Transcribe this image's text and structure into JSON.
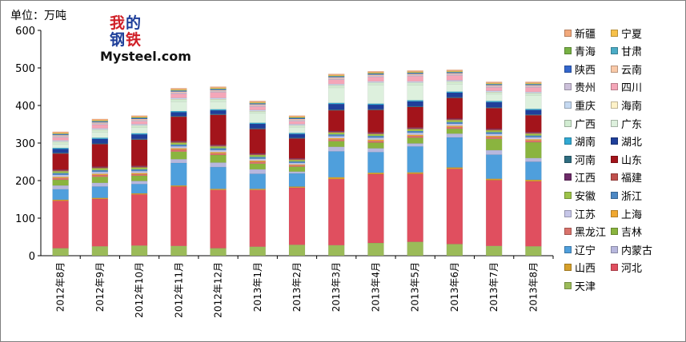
{
  "unit_label": "单位：万吨",
  "logo": {
    "cn": "我的钢铁",
    "en": "Mysteel.com"
  },
  "colors": {
    "天津": "#9bbb59",
    "河北": "#e04f5f",
    "山西": "#d6a02a",
    "内蒙古": "#b7b7dd",
    "辽宁": "#4f9fdc",
    "吉林": "#8ab43f",
    "黑龙江": "#d9726b",
    "上海": "#f0a830",
    "江苏": "#c6c6e8",
    "浙江": "#4d88c4",
    "安徽": "#9dc34a",
    "福建": "#c0504d",
    "江西": "#6d2b68",
    "山东": "#a3141b",
    "河南": "#2e6d80",
    "湖北": "#1f3f9a",
    "湖南": "#31a9d3",
    "广东": "#ddf0dd",
    "广西": "#d2ecd2",
    "海南": "#fff2c8",
    "重庆": "#c5d9f1",
    "四川": "#f4a6b8",
    "贵州": "#ccc0da",
    "云南": "#f9c9a8",
    "陕西": "#3366cc",
    "甘肃": "#4bacc6",
    "青海": "#77b144",
    "宁夏": "#f7c14a",
    "新疆": "#f2a97c"
  },
  "chart_data": {
    "type": "bar",
    "stacked": true,
    "ylim": [
      0,
      600
    ],
    "yticks": [
      0,
      100,
      200,
      300,
      400,
      500,
      600
    ],
    "categories": [
      "2012年8月",
      "2012年9月",
      "2012年10月",
      "2012年11月",
      "2012年12月",
      "2013年1月",
      "2013年2月",
      "2013年3月",
      "2013年4月",
      "2013年5月",
      "2013年6月",
      "2013年7月",
      "2013年8月"
    ],
    "legend": [
      "新疆",
      "宁夏",
      "青海",
      "甘肃",
      "陕西",
      "云南",
      "贵州",
      "四川",
      "重庆",
      "海南",
      "广西",
      "广东",
      "湖南",
      "湖北",
      "河南",
      "山东",
      "江西",
      "福建",
      "安徽",
      "浙江",
      "江苏",
      "上海",
      "黑龙江",
      "吉林",
      "辽宁",
      "内蒙古",
      "山西",
      "河北",
      "天津"
    ],
    "series": [
      {
        "name": "天津",
        "values": [
          20,
          25,
          27,
          26,
          20,
          24,
          29,
          28,
          34,
          37,
          31,
          26,
          25
        ]
      },
      {
        "name": "河北",
        "values": [
          126,
          126,
          136,
          158,
          155,
          151,
          152,
          176,
          183,
          181,
          200,
          175,
          173
        ]
      },
      {
        "name": "山西",
        "values": [
          3,
          3,
          3,
          3,
          3,
          3,
          3,
          5,
          4,
          4,
          4,
          4,
          4
        ]
      },
      {
        "name": "辽宁",
        "values": [
          28,
          30,
          25,
          60,
          58,
          40,
          35,
          69,
          55,
          69,
          80,
          64,
          48
        ]
      },
      {
        "name": "内蒙古",
        "values": [
          10,
          10,
          8,
          10,
          12,
          12,
          5,
          12,
          10,
          8,
          10,
          12,
          10
        ]
      },
      {
        "name": "吉林",
        "values": [
          15,
          16,
          14,
          20,
          20,
          15,
          13,
          15,
          15,
          15,
          13,
          30,
          42
        ]
      },
      {
        "name": "黑龙江",
        "values": [
          5,
          5,
          4,
          6,
          5,
          5,
          4,
          5,
          5,
          5,
          5,
          5,
          5
        ]
      },
      {
        "name": "上海",
        "values": [
          3,
          3,
          3,
          3,
          3,
          3,
          2,
          3,
          3,
          3,
          3,
          3,
          3
        ]
      },
      {
        "name": "江苏",
        "values": [
          5,
          5,
          5,
          5,
          5,
          5,
          4,
          5,
          5,
          5,
          5,
          5,
          5
        ]
      },
      {
        "name": "浙江",
        "values": [
          5,
          5,
          5,
          5,
          5,
          5,
          4,
          5,
          5,
          5,
          5,
          5,
          5
        ]
      },
      {
        "name": "安徽",
        "values": [
          5,
          5,
          5,
          5,
          5,
          5,
          4,
          5,
          5,
          5,
          5,
          5,
          5
        ]
      },
      {
        "name": "福建",
        "values": [
          2,
          2,
          2,
          2,
          2,
          2,
          2,
          2,
          2,
          2,
          2,
          2,
          2
        ]
      },
      {
        "name": "江西",
        "values": [
          2,
          2,
          2,
          2,
          2,
          2,
          2,
          2,
          2,
          2,
          2,
          2,
          2
        ]
      },
      {
        "name": "山东",
        "values": [
          43,
          60,
          70,
          65,
          80,
          65,
          53,
          55,
          60,
          55,
          55,
          55,
          45
        ]
      },
      {
        "name": "河南",
        "values": [
          2,
          2,
          2,
          2,
          2,
          2,
          2,
          2,
          2,
          2,
          2,
          2,
          2
        ]
      },
      {
        "name": "湖北",
        "values": [
          10,
          12,
          12,
          10,
          10,
          12,
          10,
          15,
          12,
          13,
          12,
          14,
          12
        ]
      },
      {
        "name": "湖南",
        "values": [
          3,
          3,
          3,
          3,
          3,
          3,
          3,
          3,
          3,
          3,
          3,
          3,
          3
        ]
      },
      {
        "name": "广东",
        "values": [
          10,
          15,
          15,
          25,
          20,
          25,
          15,
          40,
          50,
          40,
          20,
          18,
          35
        ]
      },
      {
        "name": "广西",
        "values": [
          6,
          6,
          5,
          6,
          6,
          5,
          4,
          6,
          5,
          6,
          6,
          5,
          6
        ]
      },
      {
        "name": "海南",
        "values": [
          1,
          1,
          1,
          1,
          1,
          1,
          1,
          1,
          1,
          1,
          1,
          1,
          1
        ]
      },
      {
        "name": "重庆",
        "values": [
          3,
          3,
          3,
          3,
          3,
          3,
          3,
          3,
          3,
          3,
          3,
          3,
          3
        ]
      },
      {
        "name": "四川",
        "values": [
          8,
          10,
          8,
          11,
          15,
          9,
          8,
          12,
          12,
          14,
          13,
          9,
          12
        ]
      },
      {
        "name": "贵州",
        "values": [
          3,
          3,
          3,
          3,
          3,
          3,
          3,
          3,
          3,
          3,
          3,
          3,
          3
        ]
      },
      {
        "name": "云南",
        "values": [
          3,
          3,
          3,
          3,
          3,
          3,
          3,
          3,
          3,
          3,
          3,
          3,
          3
        ]
      },
      {
        "name": "陕西",
        "values": [
          2,
          2,
          2,
          2,
          2,
          2,
          2,
          2,
          2,
          2,
          2,
          2,
          2
        ]
      },
      {
        "name": "甘肃",
        "values": [
          1,
          1,
          1,
          1,
          1,
          1,
          1,
          1,
          1,
          1,
          1,
          1,
          1
        ]
      },
      {
        "name": "青海",
        "values": [
          1,
          1,
          1,
          1,
          1,
          1,
          1,
          1,
          1,
          1,
          1,
          1,
          1
        ]
      },
      {
        "name": "宁夏",
        "values": [
          2,
          2,
          2,
          2,
          2,
          2,
          2,
          2,
          2,
          2,
          2,
          2,
          2
        ]
      },
      {
        "name": "新疆",
        "values": [
          3,
          3,
          3,
          3,
          3,
          3,
          3,
          3,
          3,
          3,
          3,
          3,
          3
        ]
      }
    ]
  }
}
